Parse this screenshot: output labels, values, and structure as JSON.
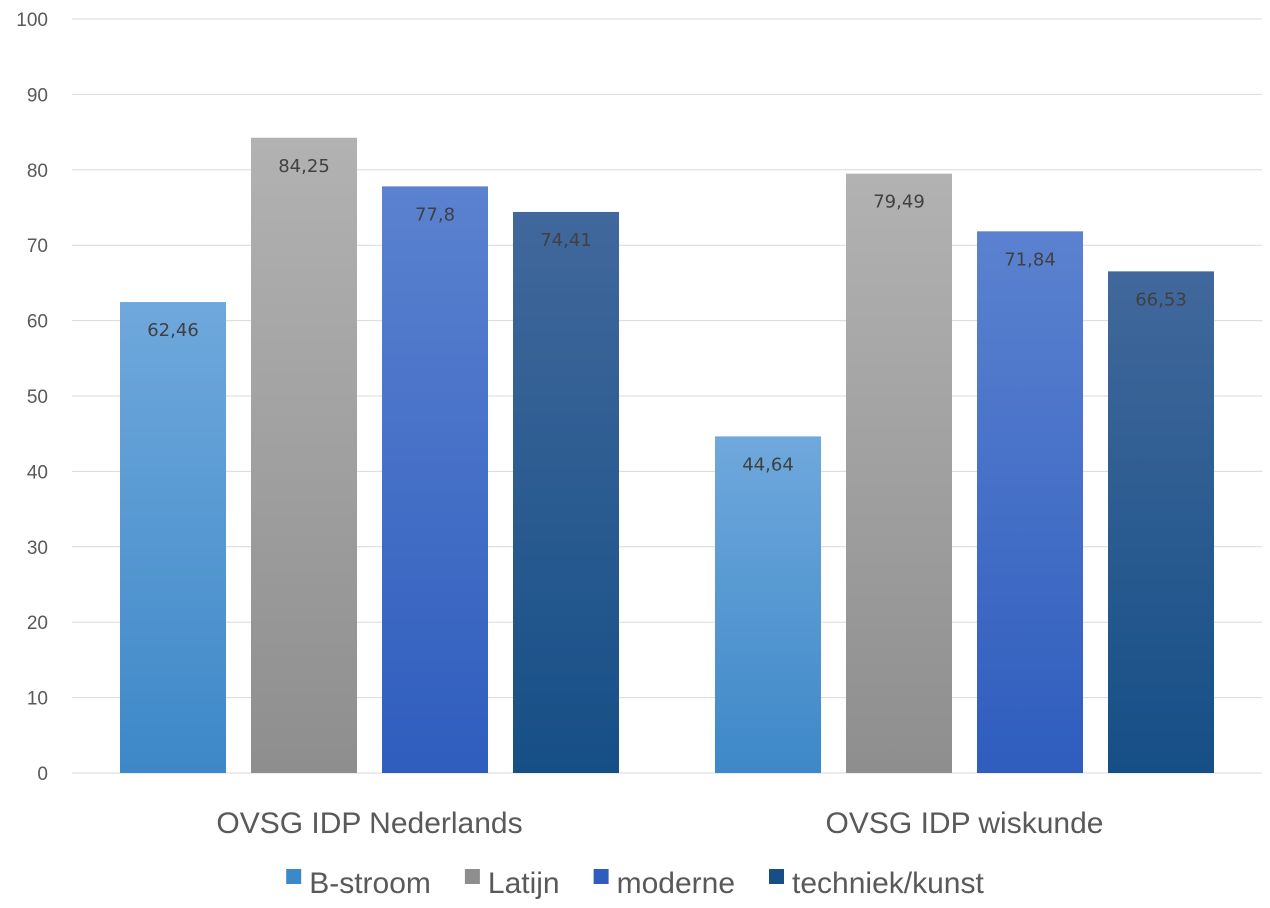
{
  "chart_data": {
    "type": "bar",
    "title": "",
    "xlabel": "",
    "ylabel": "",
    "ylim": [
      0,
      100
    ],
    "yticks": [
      "0",
      "10",
      "20",
      "30",
      "40",
      "50",
      "60",
      "70",
      "80",
      "90",
      "100"
    ],
    "grid": true,
    "legend_position": "bottom",
    "categories": [
      "OVSG IDP Nederlands",
      "OVSG IDP wiskunde"
    ],
    "series": [
      {
        "name": "B-stroom",
        "values": [
          62.46,
          44.64
        ],
        "labels": [
          "62,46",
          "44,64"
        ],
        "color_top": "#6FA8DC",
        "color_bottom": "#3D88C8"
      },
      {
        "name": "Latijn",
        "values": [
          84.25,
          79.49
        ],
        "labels": [
          "84,25",
          "79,49"
        ],
        "color_top": "#B2B2B2",
        "color_bottom": "#8E8E8E"
      },
      {
        "name": "moderne",
        "values": [
          77.8,
          71.84
        ],
        "labels": [
          "77,8",
          "71,84"
        ],
        "color_top": "#5B82D0",
        "color_bottom": "#2F5DBE"
      },
      {
        "name": "techniek/kunst",
        "values": [
          74.41,
          66.53
        ],
        "labels": [
          "74,41",
          "66,53"
        ],
        "color_top": "#41689C",
        "color_bottom": "#154F86"
      }
    ]
  }
}
